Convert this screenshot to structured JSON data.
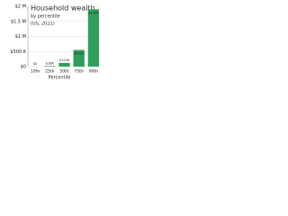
{
  "chart_data": {
    "type": "bar",
    "title": "Household wealth",
    "subtitle": "by percentile",
    "annotation": "(US, 2021)",
    "x_label": "Percentile",
    "categories": [
      "10th",
      "25th",
      "50th",
      "75th",
      "90th"
    ],
    "values": [
      0,
      18000,
      122000,
      552000,
      1900000
    ],
    "value_labels": [
      "$0",
      "$18K",
      "$122K",
      "$552K",
      "$1.9M"
    ],
    "color": "#2e9e5b",
    "ylim": [
      0,
      2000000
    ],
    "yticks": [
      {
        "value": 0,
        "label": "$0"
      },
      {
        "value": 500000,
        "label": "$500 K"
      },
      {
        "value": 1000000,
        "label": "$1 M"
      },
      {
        "value": 1500000,
        "label": "$1.5 M"
      },
      {
        "value": 2000000,
        "label": "$2 M"
      }
    ],
    "grid": true
  }
}
